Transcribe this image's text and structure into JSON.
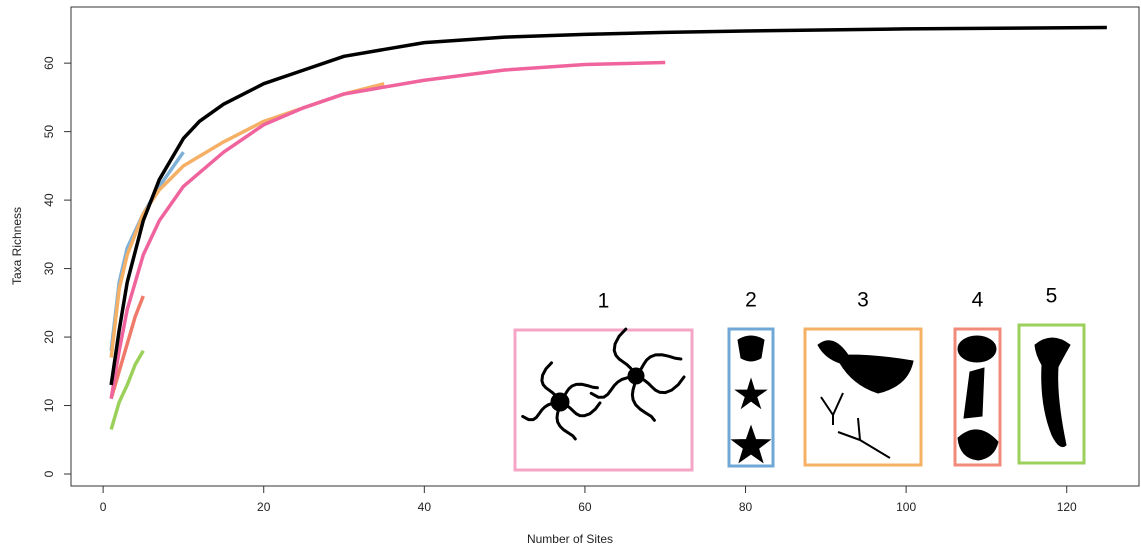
{
  "chart_data": {
    "type": "line",
    "x_label": "Number of Sites",
    "y_label": "Taxa Richness",
    "xlim": [
      -4,
      129
    ],
    "ylim": [
      -1.75,
      68.2
    ],
    "xticks": [
      0,
      20,
      40,
      60,
      80,
      100,
      120
    ],
    "yticks": [
      0,
      10,
      20,
      30,
      40,
      50,
      60
    ],
    "series": [
      {
        "color": "#000000",
        "x": [
          1,
          2,
          3,
          5,
          7,
          10,
          12,
          15,
          20,
          25,
          30,
          35,
          40,
          50,
          60,
          70,
          80,
          100,
          125
        ],
        "values": [
          13,
          21,
          28,
          37,
          43,
          49,
          51.5,
          54,
          57,
          59,
          61,
          62,
          63,
          63.8,
          64.2,
          64.5,
          64.7,
          65,
          65.2
        ]
      },
      {
        "color": "#f0649e",
        "x": [
          1,
          2,
          3,
          5,
          7,
          10,
          15,
          20,
          25,
          30,
          40,
          50,
          60,
          70
        ],
        "values": [
          11,
          18,
          24,
          32,
          37,
          42,
          47,
          51,
          53.5,
          55.5,
          57.5,
          59,
          59.8,
          60.1
        ]
      },
      {
        "color": "#f5b065",
        "x": [
          1,
          2,
          3,
          5,
          7,
          10,
          15,
          20,
          25,
          30,
          35
        ],
        "values": [
          17,
          27,
          32,
          38,
          41.5,
          45,
          48.5,
          51.5,
          53.5,
          55.5,
          57
        ]
      },
      {
        "color": "#7fb0d8",
        "x": [
          1,
          2,
          3,
          5,
          7,
          10
        ],
        "values": [
          18,
          28,
          33,
          38,
          42,
          47
        ]
      },
      {
        "color": "#f07a6a",
        "x": [
          1,
          2,
          3,
          4,
          5
        ],
        "values": [
          11,
          15,
          19,
          23,
          26
        ]
      },
      {
        "color": "#9bd05a",
        "x": [
          1,
          2,
          3,
          4,
          5
        ],
        "values": [
          6.5,
          10.5,
          13,
          16,
          18
        ]
      }
    ],
    "panels": [
      {
        "label": "1",
        "color": "#f4a6c6"
      },
      {
        "label": "2",
        "color": "#6fa8d6"
      },
      {
        "label": "3",
        "color": "#f5b065"
      },
      {
        "label": "4",
        "color": "#f08a7a"
      },
      {
        "label": "5",
        "color": "#9bd05a"
      }
    ]
  }
}
